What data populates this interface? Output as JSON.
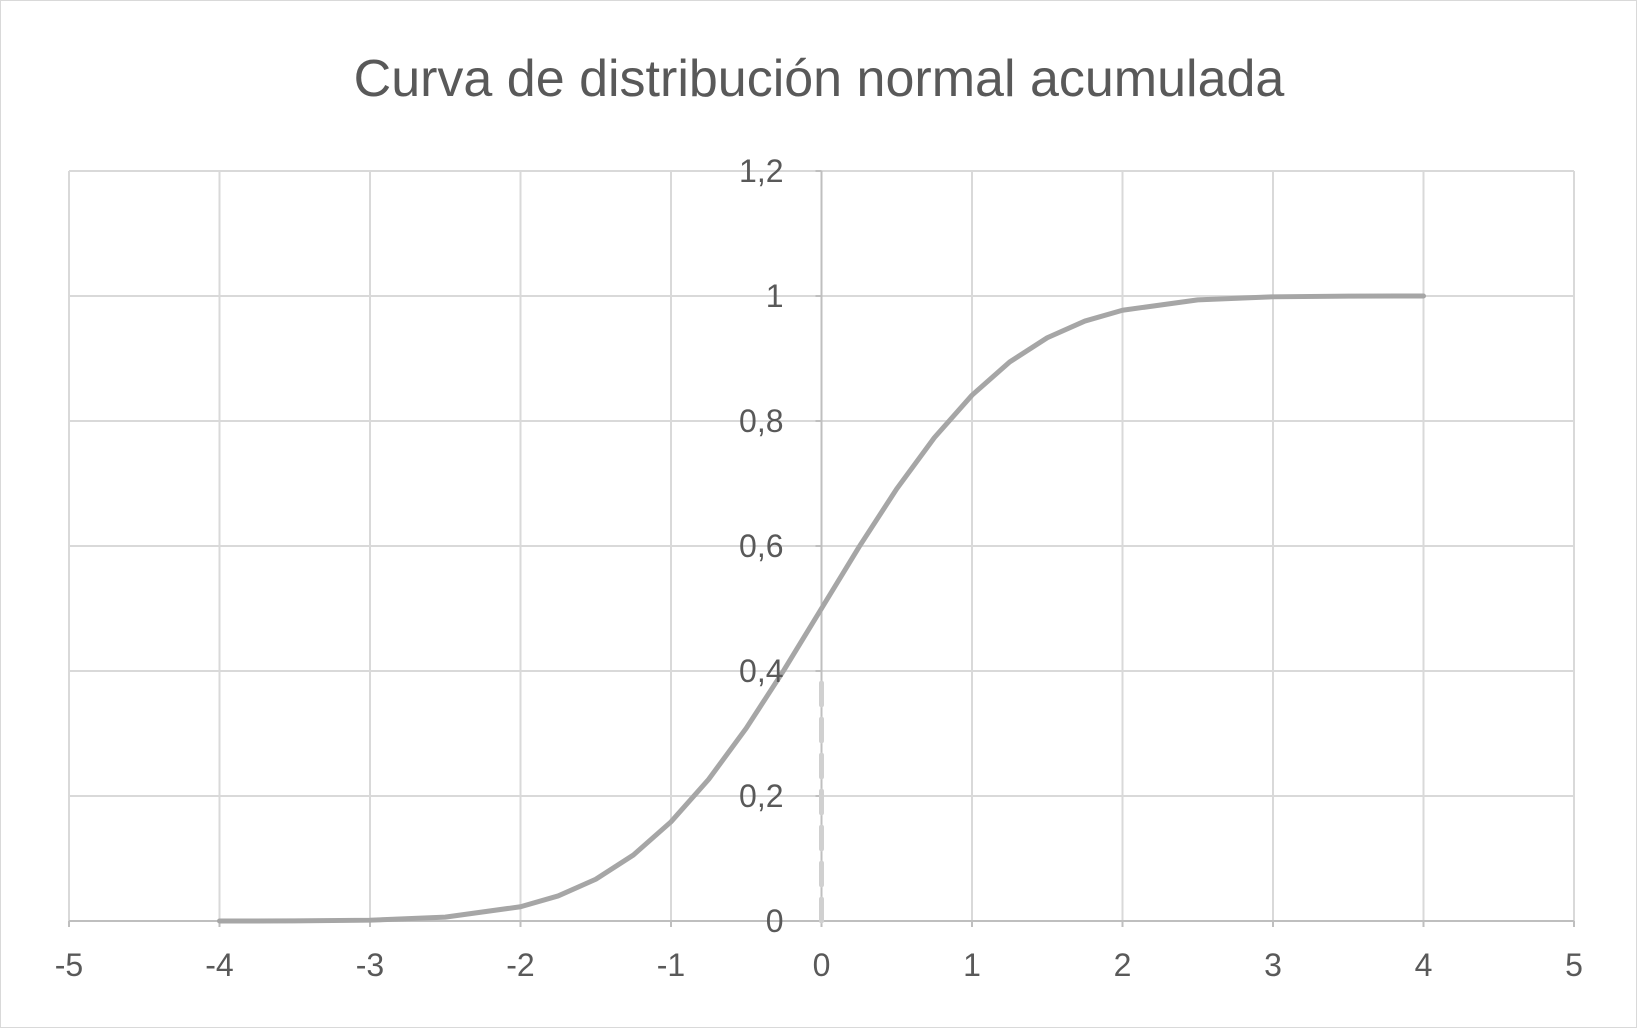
{
  "chart_data": {
    "type": "line",
    "title": "Curva de distribución normal acumulada",
    "xlabel": "",
    "ylabel": "",
    "xlim": [
      -5,
      5
    ],
    "ylim": [
      0,
      1.2
    ],
    "x_ticks": [
      -5,
      -4,
      -3,
      -2,
      -1,
      0,
      1,
      2,
      3,
      4,
      5
    ],
    "x_tick_labels": [
      "-5",
      "-4",
      "-3",
      "-2",
      "-1",
      "0",
      "1",
      "2",
      "3",
      "4",
      "5"
    ],
    "y_ticks": [
      0,
      0.2,
      0.4,
      0.6,
      0.8,
      1,
      1.2
    ],
    "y_tick_labels": [
      "0",
      "0,2",
      "0,4",
      "0,6",
      "0,8",
      "1",
      "1,2"
    ],
    "grid": true,
    "legend": "none",
    "series": [
      {
        "x": [
          -4,
          -3.5,
          -3,
          -2.5,
          -2,
          -1.75,
          -1.5,
          -1.25,
          -1,
          -0.75,
          -0.5,
          -0.25,
          0,
          0.25,
          0.5,
          0.75,
          1,
          1.25,
          1.5,
          1.75,
          2,
          2.5,
          3,
          3.5,
          4
        ],
        "y": [
          0.0,
          0.0002,
          0.0013,
          0.0062,
          0.0228,
          0.0401,
          0.0668,
          0.1056,
          0.1587,
          0.2266,
          0.3085,
          0.4013,
          0.5,
          0.5987,
          0.6915,
          0.7734,
          0.8413,
          0.8944,
          0.9332,
          0.9599,
          0.9772,
          0.9938,
          0.9987,
          0.9998,
          1.0
        ],
        "color": "#a6a6a6",
        "style": "solid"
      },
      {
        "x": [
          0,
          0
        ],
        "y": [
          0,
          0.4
        ],
        "color": "#d0d0d0",
        "style": "dashed"
      }
    ],
    "colors": {
      "grid": "#d9d9d9",
      "axis": "#bfbfbf",
      "text": "#595959"
    }
  }
}
